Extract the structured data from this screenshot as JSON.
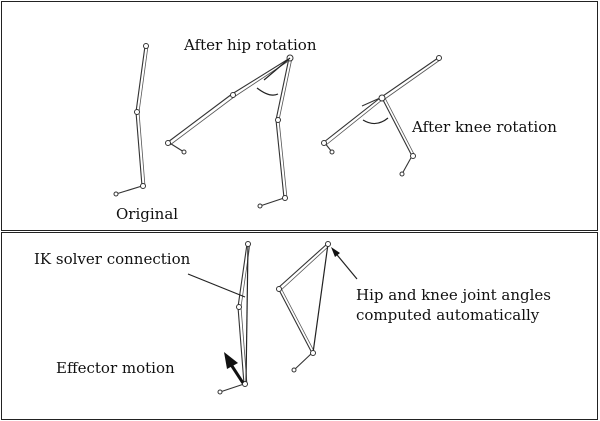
{
  "top_panel": {
    "label_original": "Original",
    "label_hip": "After hip rotation",
    "label_knee": "After knee rotation"
  },
  "bottom_panel": {
    "label_ik": "IK solver connection",
    "label_effector": "Effector motion",
    "label_angles_line1": "Hip and knee joint angles",
    "label_angles_line2": "computed automatically"
  }
}
